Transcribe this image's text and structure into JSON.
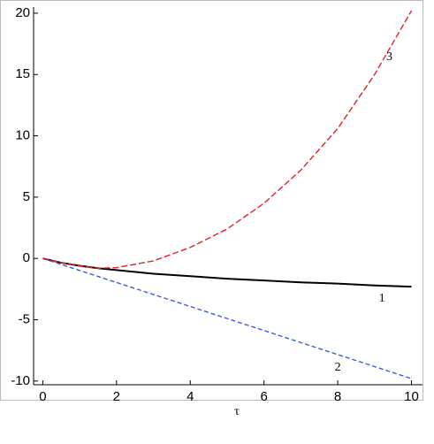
{
  "chart_data": {
    "type": "line",
    "xlabel": "τ",
    "x": [
      0,
      0.5,
      1,
      1.5,
      2,
      3,
      4,
      5,
      6,
      7,
      8,
      9,
      10
    ],
    "series": [
      {
        "name": "1",
        "color": "#000000",
        "dash": "none",
        "values": [
          0,
          -0.35,
          -0.6,
          -0.8,
          -0.95,
          -1.25,
          -1.45,
          -1.65,
          -1.8,
          -1.95,
          -2.05,
          -2.2,
          -2.3
        ]
      },
      {
        "name": "2",
        "color": "#3b5fd6",
        "dash": "5,3",
        "values": [
          0,
          -0.49,
          -0.98,
          -1.47,
          -1.96,
          -2.94,
          -3.92,
          -4.9,
          -5.88,
          -6.86,
          -7.84,
          -8.82,
          -9.8
        ]
      },
      {
        "name": "3",
        "color": "#e3202c",
        "dash": "7,3",
        "values": [
          0,
          -0.35,
          -0.6,
          -0.8,
          -0.75,
          -0.2,
          0.9,
          2.4,
          4.5,
          7.2,
          10.6,
          15,
          20.2
        ]
      }
    ],
    "xlim": [
      -0.25,
      10.3
    ],
    "ylim": [
      -10.3,
      20.5
    ],
    "xticks": [
      0,
      2,
      4,
      6,
      8,
      10
    ],
    "yticks": [
      -10,
      -5,
      0,
      5,
      10,
      15,
      20
    ]
  }
}
